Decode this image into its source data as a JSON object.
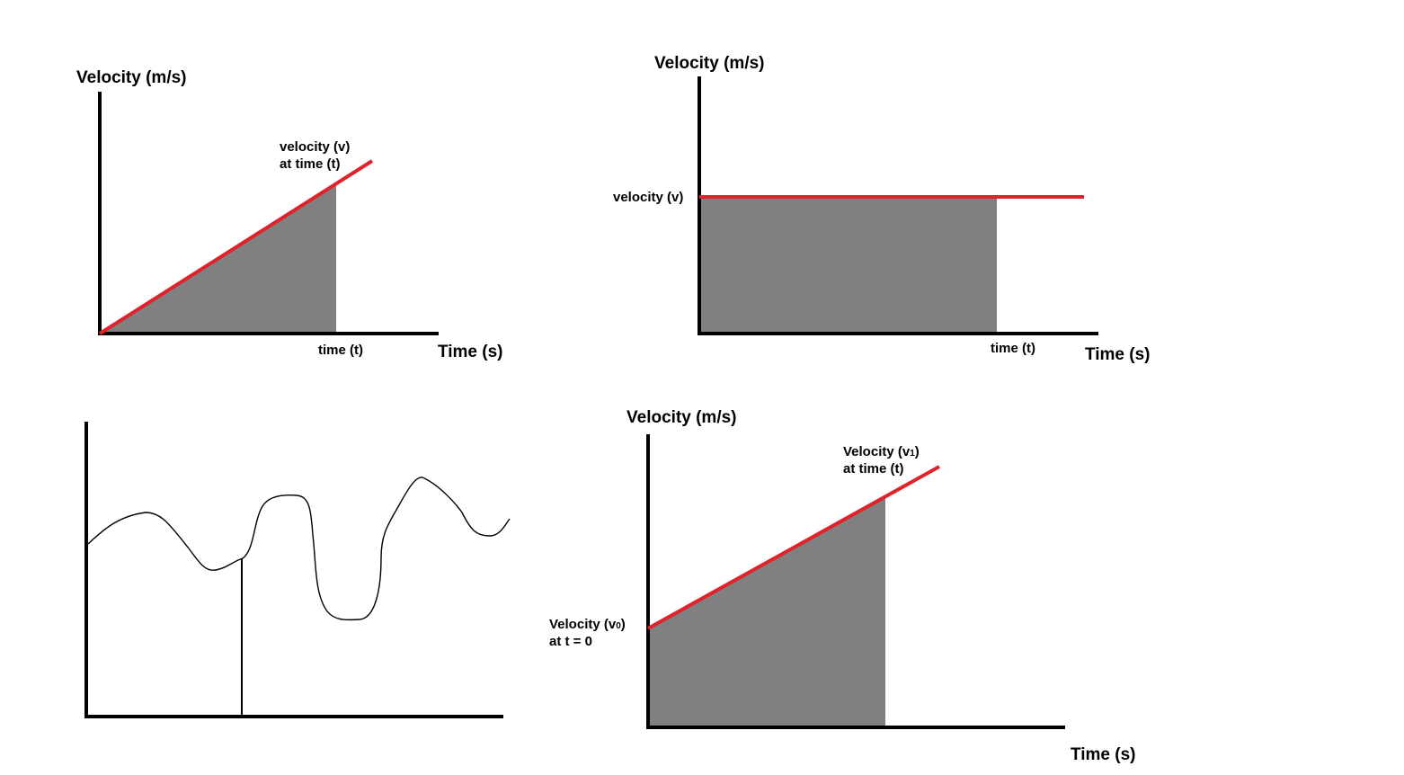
{
  "colors": {
    "axis": "#000000",
    "velocity_line": "#e0222b",
    "area_fill": "#808080",
    "curve": "#000000",
    "background": "#ffffff"
  },
  "panels": {
    "top_left": {
      "y_axis_title": "Velocity (m/s)",
      "x_axis_title": "Time (s)",
      "line_label_1": "velocity (v)",
      "line_label_2": "at time (t)",
      "x_marker_label": "time (t)"
    },
    "top_right": {
      "y_axis_title": "Velocity (m/s)",
      "x_axis_title": "Time (s)",
      "y_marker_label": "velocity (v)",
      "x_marker_label": "time (t)"
    },
    "bottom_left": {
      "description_shape": "irregular velocity curve with a vertical line at one instant"
    },
    "bottom_right": {
      "y_axis_title": "Velocity (m/s)",
      "x_axis_title": "Time (s)",
      "start_label_1": "Velocity (v",
      "start_label_sub": "0",
      "start_label_close": ")",
      "start_label_2": "at t = 0",
      "end_label_1": "Velocity (v",
      "end_label_sub": "1",
      "end_label_close": ")",
      "end_label_2": "at time (t)"
    }
  }
}
